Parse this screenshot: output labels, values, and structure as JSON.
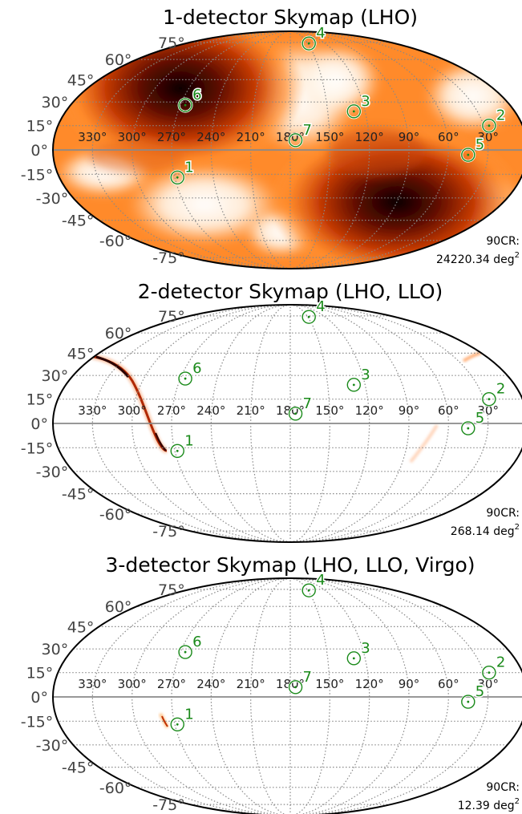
{
  "colors": {
    "heat_mid": "#ff7a1a",
    "heat_dark": "#1a0000",
    "marker": "#1a8a1a",
    "grid": "#888888",
    "equator": "#8a8a8a"
  },
  "chart_data": [
    {
      "type": "heatmap",
      "projection": "mollweide",
      "title": "1-detector Skymap (LHO)",
      "lon_ticks": [
        "330°",
        "300°",
        "270°",
        "240°",
        "210°",
        "180°",
        "150°",
        "120°",
        "90°",
        "60°",
        "30°"
      ],
      "lat_ticks": [
        "75°",
        "60°",
        "45°",
        "30°",
        "15°",
        "0°",
        "-15°",
        "-30°",
        "-45°",
        "-60°",
        "-75°"
      ],
      "grid": true,
      "sources": [
        {
          "id": "1",
          "ra": 268,
          "dec": -17
        },
        {
          "id": "4",
          "ra": 148,
          "dec": 74
        },
        {
          "id": "6",
          "ra": 266,
          "dec": 28
        },
        {
          "id": "3",
          "ra": 129,
          "dec": 24
        },
        {
          "id": "7",
          "ra": 176,
          "dec": 6
        },
        {
          "id": "2",
          "ra": 26,
          "dec": 15
        },
        {
          "id": "5",
          "ra": 45,
          "dec": -3
        }
      ],
      "area_label": "90CR:",
      "area_value": "24220.34",
      "area_unit": "deg",
      "area_unit_power": "2"
    },
    {
      "type": "heatmap",
      "projection": "mollweide",
      "title": "2-detector Skymap (LHO, LLO)",
      "lon_ticks": [
        "330°",
        "300°",
        "270°",
        "240°",
        "210°",
        "180°",
        "150°",
        "120°",
        "90°",
        "60°",
        "30°"
      ],
      "lat_ticks": [
        "75°",
        "60°",
        "45°",
        "30°",
        "15°",
        "0°",
        "-15°",
        "-30°",
        "-45°",
        "-60°",
        "-75°"
      ],
      "grid": true,
      "sources": [
        {
          "id": "1",
          "ra": 268,
          "dec": -17
        },
        {
          "id": "4",
          "ra": 148,
          "dec": 74
        },
        {
          "id": "6",
          "ra": 266,
          "dec": 28
        },
        {
          "id": "3",
          "ra": 129,
          "dec": 24
        },
        {
          "id": "7",
          "ra": 176,
          "dec": 6
        },
        {
          "id": "2",
          "ra": 26,
          "dec": 15
        },
        {
          "id": "5",
          "ra": 45,
          "dec": -3
        }
      ],
      "area_label": "90CR:",
      "area_value": "268.14",
      "area_unit": "deg",
      "area_unit_power": "2"
    },
    {
      "type": "heatmap",
      "projection": "mollweide",
      "title": "3-detector Skymap (LHO, LLO, Virgo)",
      "lon_ticks": [
        "330°",
        "300°",
        "270°",
        "240°",
        "210°",
        "180°",
        "150°",
        "120°",
        "90°",
        "60°",
        "30°"
      ],
      "lat_ticks": [
        "75°",
        "60°",
        "45°",
        "30°",
        "15°",
        "0°",
        "-15°",
        "-30°",
        "-45°",
        "-60°",
        "-75°"
      ],
      "grid": true,
      "sources": [
        {
          "id": "1",
          "ra": 268,
          "dec": -17
        },
        {
          "id": "4",
          "ra": 148,
          "dec": 74
        },
        {
          "id": "6",
          "ra": 266,
          "dec": 28
        },
        {
          "id": "3",
          "ra": 129,
          "dec": 24
        },
        {
          "id": "7",
          "ra": 176,
          "dec": 6
        },
        {
          "id": "2",
          "ra": 26,
          "dec": 15
        },
        {
          "id": "5",
          "ra": 45,
          "dec": -3
        }
      ],
      "area_label": "90CR:",
      "area_value": "12.39",
      "area_unit": "deg",
      "area_unit_power": "2"
    }
  ]
}
